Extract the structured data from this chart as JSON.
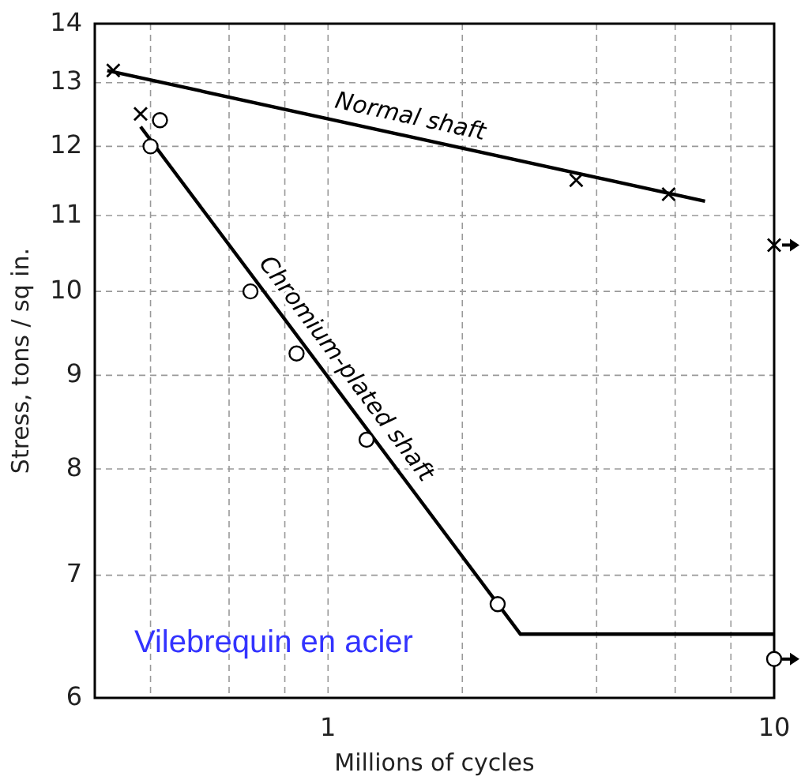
{
  "chart_data": {
    "type": "line",
    "xlabel": "Millions of cycles",
    "ylabel": "Stress, tons / sq in.",
    "log": "xy",
    "grid": true,
    "xlim": [
      0.3,
      10
    ],
    "xticks": [
      {
        "value": 0.4,
        "label": null
      },
      {
        "value": 0.6,
        "label": null
      },
      {
        "value": 0.8,
        "label": null
      },
      1,
      {
        "value": 2,
        "label": null
      },
      {
        "value": 4,
        "label": null
      },
      {
        "value": 6,
        "label": null
      },
      {
        "value": 8,
        "label": null
      },
      10
    ],
    "ylim": [
      6,
      14
    ],
    "yticks": [
      6,
      7,
      8,
      9,
      10,
      11,
      12,
      13,
      14
    ],
    "series": [
      {
        "name": "Normal shaft",
        "color": "#000000",
        "marker": "none",
        "x": [
          0.32,
          7.0
        ],
        "values": [
          13.2,
          11.2
        ]
      },
      {
        "name": "Chromium-plated shaft",
        "color": "#000000",
        "marker": "none",
        "x": [
          0.38,
          2.7,
          10
        ],
        "values": [
          12.3,
          6.5,
          6.5
        ]
      },
      {
        "type": "scatter",
        "color": "#000000",
        "marker": "cross",
        "x": [
          0.33,
          0.38,
          3.6,
          5.8,
          10
        ],
        "values": [
          13.2,
          12.5,
          11.5,
          11.3,
          10.6
        ]
      },
      {
        "type": "scatter",
        "color": "#000000",
        "marker": "circle",
        "x": [
          0.42,
          0.4,
          0.67,
          0.85,
          1.22,
          2.4,
          10
        ],
        "values": [
          12.4,
          12.0,
          10.0,
          9.25,
          8.3,
          6.75,
          6.3
        ]
      }
    ],
    "annotations": [
      "Vilebrequin en acier"
    ]
  }
}
